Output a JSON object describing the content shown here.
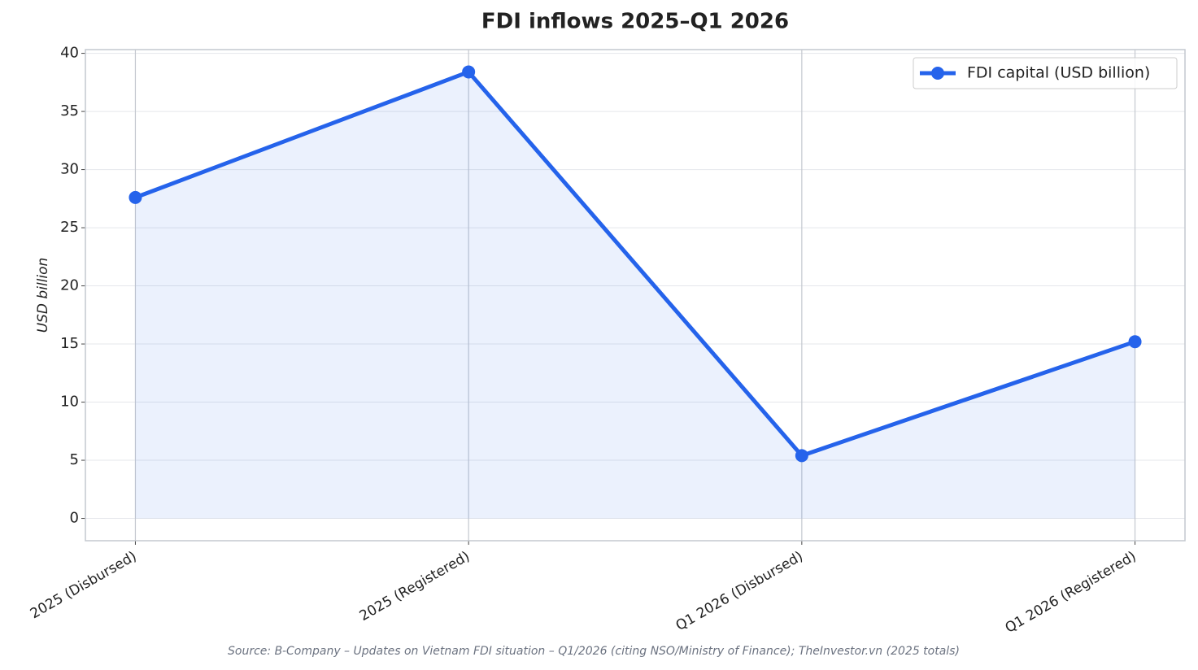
{
  "chart_data": {
    "type": "line",
    "title": "FDI inflows 2025–Q1 2026",
    "y_label": "USD billion",
    "source": "Source: B-Company – Updates on Vietnam FDI situation – Q1/2026 (citing NSO/Ministry of Finance); TheInvestor.vn (2025 totals)",
    "categories": [
      "2025 (Disbursed)",
      "2025 (Registered)",
      "Q1 2026 (Disbursed)",
      "Q1 2026 (Registered)"
    ],
    "series": [
      {
        "name": "FDI capital (USD billion)",
        "color": "#2563eb",
        "values": [
          27.6,
          38.4,
          5.4,
          15.2
        ]
      }
    ],
    "ylim": [
      -1.92,
      40.32
    ],
    "yticks": [
      0,
      5,
      10,
      15,
      20,
      25,
      30,
      35,
      40
    ],
    "grid": true,
    "fill_area": true,
    "legend": "upper right"
  }
}
